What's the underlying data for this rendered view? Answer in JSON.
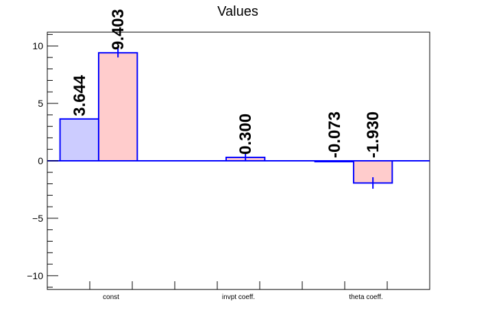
{
  "chart_data": {
    "type": "bar",
    "title": "Values",
    "xlabel": "",
    "ylabel": "",
    "categories": [
      "const",
      "invpt coeff.",
      "theta coeff."
    ],
    "ylim": [
      -11.2,
      11.2
    ],
    "yticks": [
      -10,
      -5,
      0,
      5,
      10
    ],
    "ytick_labels": [
      "−10",
      "−5",
      "0",
      "5",
      "10"
    ],
    "grid": false,
    "series": [
      {
        "values": [
          3.644,
          0.0,
          -0.073
        ],
        "labels": [
          "3.644",
          "",
          "-0.073"
        ],
        "errors": [
          0,
          0,
          0
        ],
        "fill": "#ccccff",
        "stroke": "#0000ff"
      },
      {
        "values": [
          9.403,
          0.3,
          -1.93
        ],
        "labels": [
          "9.403",
          "0.300",
          "-1.930"
        ],
        "errors": [
          0.4,
          0.3,
          0.5
        ],
        "fill": "#ffcccc",
        "stroke": "#0000ff"
      }
    ]
  }
}
